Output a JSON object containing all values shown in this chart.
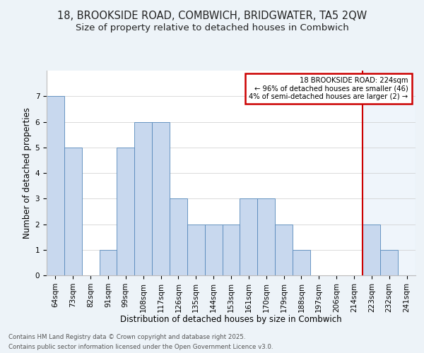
{
  "title_line1": "18, BROOKSIDE ROAD, COMBWICH, BRIDGWATER, TA5 2QW",
  "title_line2": "Size of property relative to detached houses in Combwich",
  "xlabel": "Distribution of detached houses by size in Combwich",
  "ylabel": "Number of detached properties",
  "categories": [
    "64sqm",
    "73sqm",
    "82sqm",
    "91sqm",
    "99sqm",
    "108sqm",
    "117sqm",
    "126sqm",
    "135sqm",
    "144sqm",
    "153sqm",
    "161sqm",
    "170sqm",
    "179sqm",
    "188sqm",
    "197sqm",
    "206sqm",
    "214sqm",
    "223sqm",
    "232sqm",
    "241sqm"
  ],
  "values": [
    7,
    5,
    0,
    1,
    5,
    6,
    6,
    3,
    2,
    2,
    2,
    3,
    3,
    2,
    1,
    0,
    0,
    0,
    2,
    1,
    0
  ],
  "bar_color": "#c8d8ee",
  "bar_edge_color": "#5588bb",
  "red_line_index": 18,
  "red_line_color": "#cc0000",
  "annotation_text": "18 BROOKSIDE ROAD: 224sqm\n← 96% of detached houses are smaller (46)\n4% of semi-detached houses are larger (2) →",
  "annotation_box_color": "#ffffff",
  "annotation_box_edge_color": "#cc0000",
  "ylim": [
    0,
    8
  ],
  "yticks": [
    0,
    1,
    2,
    3,
    4,
    5,
    6,
    7
  ],
  "footer_line1": "Contains HM Land Registry data © Crown copyright and database right 2025.",
  "footer_line2": "Contains public sector information licensed under the Open Government Licence v3.0.",
  "background_color": "#edf3f8",
  "plot_bg_color": "#ffffff",
  "grid_color": "#cccccc",
  "title_fontsize": 10.5,
  "subtitle_fontsize": 9.5,
  "tick_fontsize": 7.5,
  "label_fontsize": 8.5
}
